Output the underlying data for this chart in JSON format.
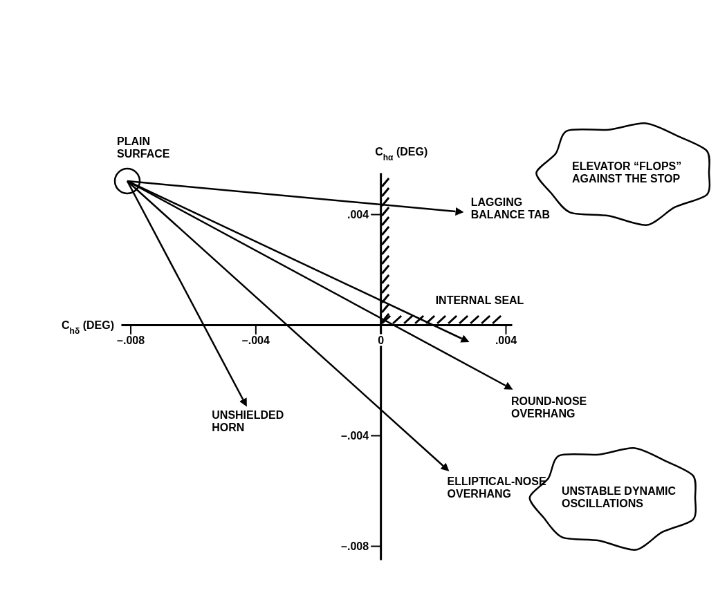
{
  "chart_data": {
    "type": "line",
    "xlabel": "C$_{hδ}$ (DEG)",
    "ylabel": "C$_{hα}$ (DEG)",
    "xlim": [
      -0.0083,
      0.0042
    ],
    "ylim": [
      -0.0085,
      0.0055
    ],
    "xticks": [
      {
        "value": -0.008,
        "label": "–.008"
      },
      {
        "value": -0.004,
        "label": "–.004"
      },
      {
        "value": 0,
        "label": "0"
      },
      {
        "value": 0.004,
        "label": ".004"
      }
    ],
    "yticks": [
      {
        "value": 0.004,
        "label": ".004"
      },
      {
        "value": -0.004,
        "label": "–.004"
      },
      {
        "value": -0.008,
        "label": "–.008"
      }
    ],
    "line_style": "solid",
    "legend": false,
    "grid": false,
    "series": [
      {
        "name": "PLAIN SURFACE",
        "type": "scatter",
        "marker": "circle",
        "color": "#000000",
        "x": [
          -0.0081
        ],
        "values": [
          0.0052
        ]
      },
      {
        "name": "LAGGING BALANCE TAB",
        "color": "#000000",
        "x": [
          -0.0081,
          0.0024
        ],
        "values": [
          0.0052,
          0.0041
        ]
      },
      {
        "name": "INTERNAL SEAL",
        "color": "#000000",
        "x": [
          -0.0081,
          0.0026
        ],
        "values": [
          0.0052,
          -0.0005
        ]
      },
      {
        "name": "ROUND-NOSE OVERHANG",
        "color": "#000000",
        "x": [
          -0.0081,
          0.004
        ],
        "values": [
          0.0052,
          -0.0022
        ]
      },
      {
        "name": "ELLIPTICAL-NOSE OVERHANG",
        "color": "#000000",
        "x": [
          -0.0081,
          0.002
        ],
        "values": [
          0.0052,
          -0.0051
        ]
      },
      {
        "name": "UNSHIELDED HORN",
        "color": "#000000",
        "x": [
          -0.0081,
          -0.0044
        ],
        "values": [
          0.0052,
          -0.0027
        ]
      }
    ],
    "annotations": [
      "ELEVATOR “FLOPS” AGAINST THE STOP",
      "UNSTABLE DYNAMIC OSCILLATIONS"
    ]
  }
}
